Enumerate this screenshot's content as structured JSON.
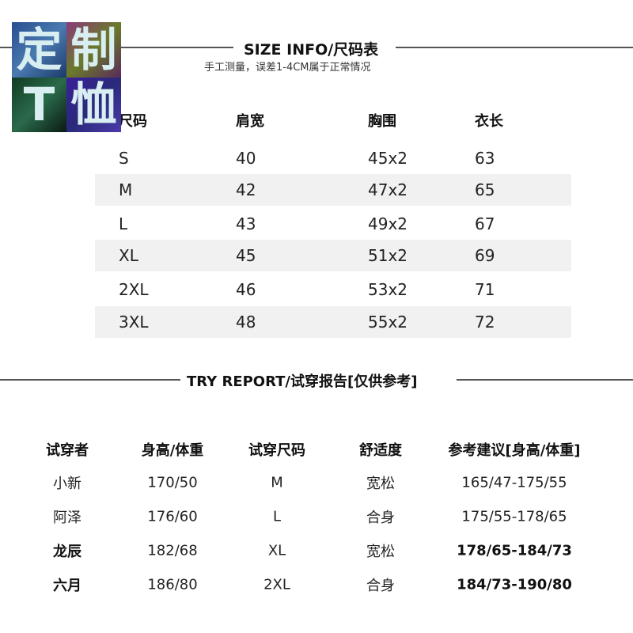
{
  "logo": {
    "line1": "定制",
    "line2": "T恤",
    "colors": [
      "#2a4d8f",
      "#7a4a7a",
      "#1f4a2f",
      "#3a1f9a"
    ]
  },
  "size_info": {
    "title": "SIZE INFO/尺码表",
    "note": "手工测量，误差1-4CM属于正常情况",
    "headers": [
      "尺码",
      "肩宽",
      "胸围",
      "衣长"
    ],
    "rows": [
      [
        "S",
        "40",
        "45x2",
        "63"
      ],
      [
        "M",
        "42",
        "47x2",
        "65"
      ],
      [
        "L",
        "43",
        "49x2",
        "67"
      ],
      [
        "XL",
        "45",
        "51x2",
        "69"
      ],
      [
        "2XL",
        "46",
        "53x2",
        "71"
      ],
      [
        "3XL",
        "48",
        "55x2",
        "72"
      ]
    ]
  },
  "try_report": {
    "title": "TRY REPORT/试穿报告[仅供参考]",
    "headers": [
      "试穿者",
      "身高/体重",
      "试穿尺码",
      "舒适度",
      "参考建议[身高/体重]"
    ],
    "rows": [
      [
        "小新",
        "170/50",
        "M",
        "宽松",
        "165/47-175/55"
      ],
      [
        "阿泽",
        "176/60",
        "L",
        "合身",
        "175/55-178/65"
      ],
      [
        "龙辰",
        "182/68",
        "XL",
        "宽松",
        "178/65-184/73"
      ],
      [
        "六月",
        "186/80",
        "2XL",
        "合身",
        "184/73-190/80"
      ]
    ]
  }
}
